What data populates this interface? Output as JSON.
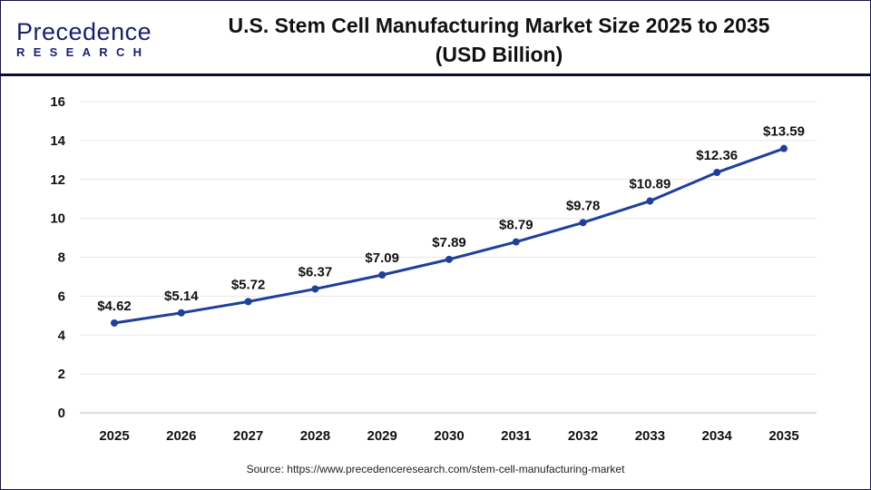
{
  "logo": {
    "text_main": "Precedence",
    "text_sub": "RESEARCH"
  },
  "title_line1": "U.S. Stem Cell Manufacturing Market Size 2025 to 2035",
  "title_line2": "(USD Billion)",
  "source": "Source: https://www.precedenceresearch.com/stem-cell-manufacturing-market",
  "colors": {
    "line": "#1f3f9a",
    "header_rule": "#0e0b3a",
    "grid": "#e6e6e6"
  },
  "chart_data": {
    "type": "line",
    "title": "U.S. Stem Cell Manufacturing Market Size 2025 to 2035 (USD Billion)",
    "categories": [
      "2025",
      "2026",
      "2027",
      "2028",
      "2029",
      "2030",
      "2031",
      "2032",
      "2033",
      "2034",
      "2035"
    ],
    "values": [
      4.62,
      5.14,
      5.72,
      6.37,
      7.09,
      7.89,
      8.79,
      9.78,
      10.89,
      12.36,
      13.59
    ],
    "data_labels": [
      "$4.62",
      "$5.14",
      "$5.72",
      "$6.37",
      "$7.09",
      "$7.89",
      "$8.79",
      "$9.78",
      "$10.89",
      "$12.36",
      "$13.59"
    ],
    "ylim": [
      0,
      16
    ],
    "yticks": [
      0,
      2,
      4,
      6,
      8,
      10,
      12,
      14,
      16
    ],
    "grid": true,
    "legend": "none"
  }
}
